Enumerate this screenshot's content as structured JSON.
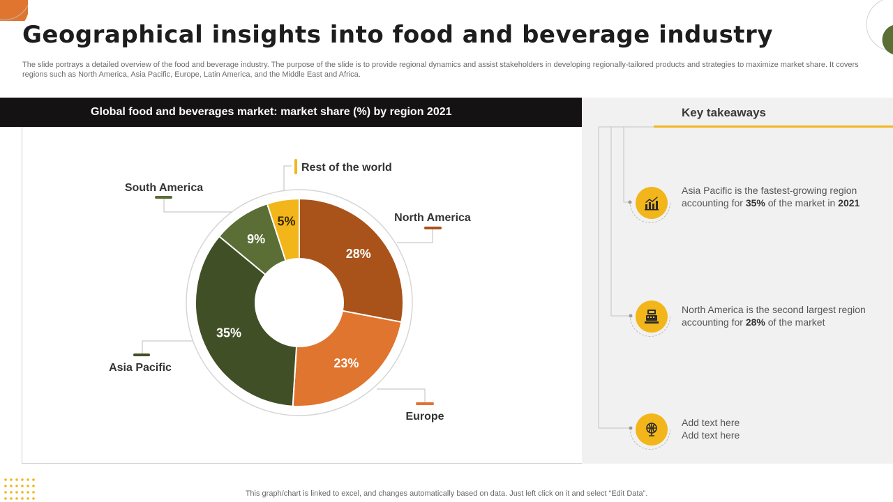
{
  "page": {
    "title": "Geographical insights into food and beverage industry",
    "subtitle": "The slide portrays a detailed overview of the food and beverage industry. The purpose of the slide is to provide regional dynamics and assist stakeholders in developing regionally-tailored products and strategies to maximize market share. It covers regions such as North America, Asia Pacific, Europe, Latin America, and the Middle East and Africa.",
    "footer": "This graph/chart is linked to excel,  and changes automatically based on data. Just left click on it and select “Edit Data”."
  },
  "chart_data": {
    "type": "pie",
    "variant": "donut",
    "title": "Global food and beverages market: market share (%) by region 2021",
    "unit": "%",
    "legend_position": "callout-labels",
    "slices": [
      {
        "label": "North America",
        "value": 28,
        "color": "#a9531b"
      },
      {
        "label": "Europe",
        "value": 23,
        "color": "#e0752f"
      },
      {
        "label": "Asia Pacific",
        "value": 35,
        "color": "#414f27"
      },
      {
        "label": "South America",
        "value": 9,
        "color": "#5b6e36"
      },
      {
        "label": "Rest of the world",
        "value": 5,
        "color": "#f2b61b"
      }
    ]
  },
  "takeaways": {
    "title": "Key takeaways",
    "accent_color": "#f2b61b",
    "items": [
      {
        "icon": "growth-chart-icon",
        "text_before": "Asia Pacific is the fastest-growing region accounting for ",
        "strong1": "35%",
        "text_mid": " of the market in ",
        "strong2": "2021"
      },
      {
        "icon": "cash-register-icon",
        "text_before": "North America is the second largest region accounting for ",
        "strong1": "28%",
        "text_mid": " of the market",
        "strong2": ""
      },
      {
        "icon": "globe-stand-icon",
        "line1": "Add text here",
        "line2": "Add text here"
      }
    ]
  }
}
